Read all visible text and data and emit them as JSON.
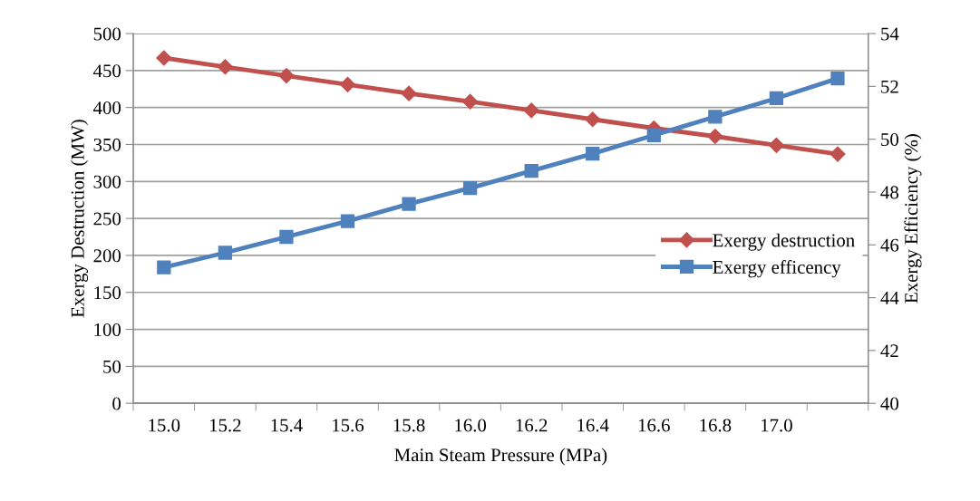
{
  "chart_data": {
    "type": "line",
    "xlabel": "Main Steam Pressure (MPa)",
    "ylabel": "Exergy Destruction (MW)",
    "y2label": "Exergy Efficiency (%)",
    "categories": [
      "15.0",
      "15.2",
      "15.4",
      "15.6",
      "15.8",
      "16.0",
      "16.2",
      "16.4",
      "16.6",
      "16.8",
      "17.0",
      null
    ],
    "series": [
      {
        "name": "Exergy destruction",
        "color": "#c0504d",
        "marker": "diamond",
        "values": [
          467,
          455,
          443,
          431,
          419,
          408,
          396,
          384,
          372,
          361,
          349,
          337
        ]
      },
      {
        "name": "Exergy efficency",
        "color": "#4f81bd",
        "marker": "square",
        "axis": "y2",
        "values": [
          45.15,
          45.7,
          46.3,
          46.9,
          47.55,
          48.15,
          48.8,
          49.45,
          50.15,
          50.85,
          51.55,
          52.3
        ]
      }
    ],
    "ylim": [
      0,
      500
    ],
    "yticks": [
      0,
      50,
      100,
      150,
      200,
      250,
      300,
      350,
      400,
      450,
      500
    ],
    "y2lim": [
      40,
      54
    ],
    "y2ticks": [
      40,
      42,
      44,
      46,
      48,
      50,
      52,
      54
    ],
    "grid": "y",
    "legend": "center right",
    "line_style": "solid"
  }
}
